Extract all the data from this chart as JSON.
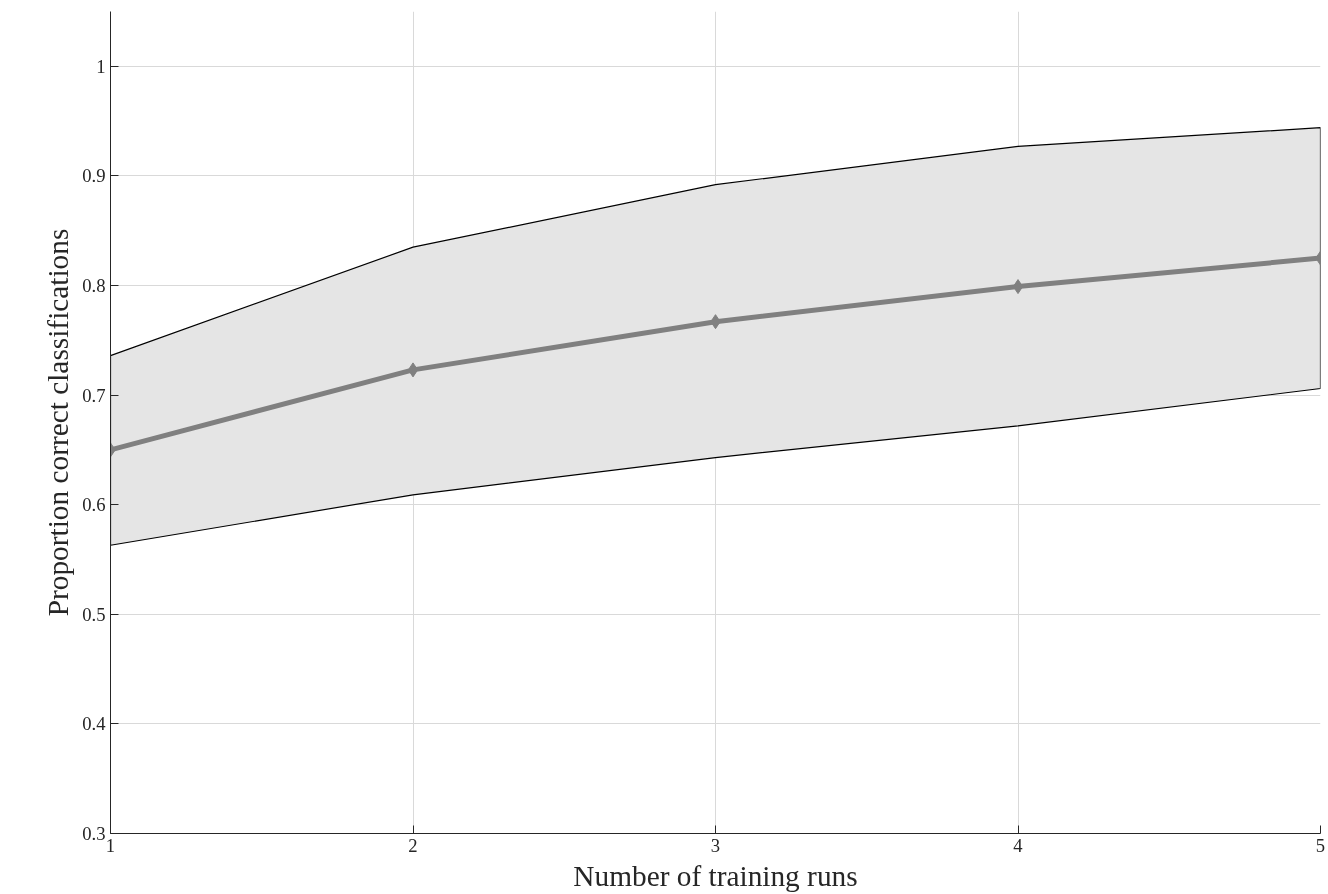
{
  "chart_data": {
    "type": "line",
    "xlabel": "Number of training runs",
    "ylabel": "Proportion correct classifications",
    "x": [
      1,
      2,
      3,
      4,
      5
    ],
    "series": [
      {
        "color": "#808080",
        "values": [
          0.65,
          0.723,
          0.767,
          0.799,
          0.825
        ],
        "lower": [
          0.563,
          0.609,
          0.643,
          0.672,
          0.706
        ],
        "upper": [
          0.736,
          0.835,
          0.892,
          0.927,
          0.944
        ]
      }
    ],
    "xlim": [
      1,
      5
    ],
    "xticks": [
      1,
      2,
      3,
      4,
      5
    ],
    "ylim": [
      0.3,
      1.05
    ],
    "yticks": [
      0.3,
      0.4,
      0.5,
      0.6,
      0.7,
      0.8,
      0.9,
      {
        "value": 1,
        "label": "1"
      }
    ],
    "grid": true,
    "marker": "diamond",
    "line_style": "solid"
  }
}
